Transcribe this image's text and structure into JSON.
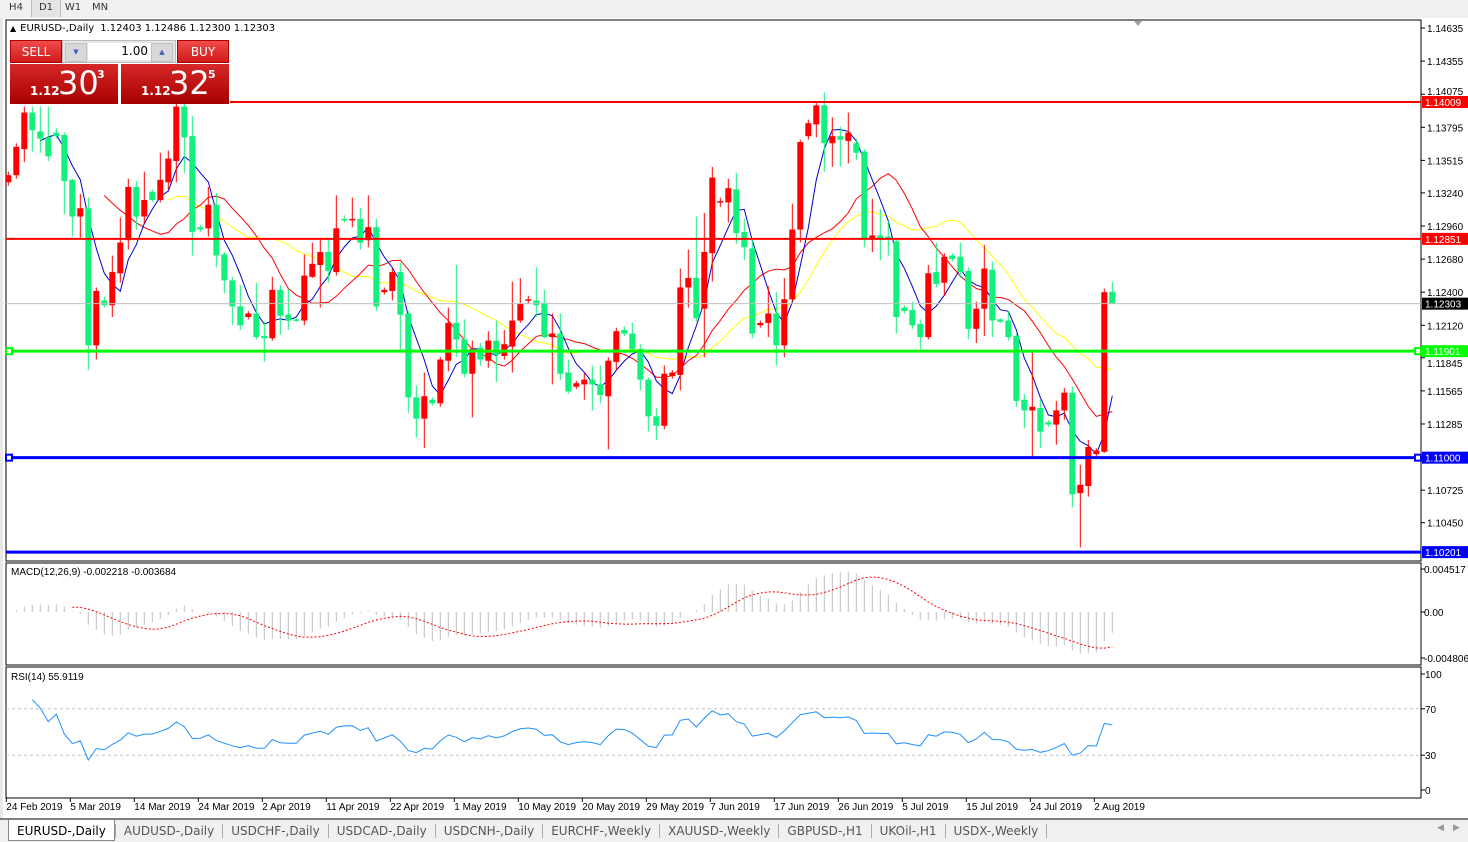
{
  "toolbar": {
    "timeframes": [
      "H4",
      "D1",
      "W1",
      "MN"
    ],
    "active": "D1"
  },
  "chart": {
    "symbol_label": "EURUSD-,Daily",
    "ohlc_text": "1.12403 1.12486 1.12300 1.12303"
  },
  "trade_panel": {
    "sell_label": "SELL",
    "buy_label": "BUY",
    "lot": "1.00",
    "sell_price": {
      "prefix": "1.12",
      "big": "30",
      "sup": "3"
    },
    "buy_price": {
      "prefix": "1.12",
      "big": "32",
      "sup": "5"
    }
  },
  "price_axis": {
    "ticks": [
      "1.14635",
      "1.14355",
      "1.14075",
      "1.13795",
      "1.13515",
      "1.13240",
      "1.12960",
      "1.12680",
      "1.12400",
      "1.12120",
      "1.11845",
      "1.11565",
      "1.11285",
      "1.10725",
      "1.10450"
    ]
  },
  "hlines": [
    {
      "price": "1.14009",
      "color": "#ff0000",
      "text_color": "#ffffff",
      "selected": false
    },
    {
      "price": "1.12851",
      "color": "#ff0000",
      "text_color": "#ffffff",
      "selected": false
    },
    {
      "price": "1.12303",
      "color": "#c0c0c0",
      "text_color": "#ffffff",
      "label_bg": "#000000",
      "selected": false
    },
    {
      "price": "1.11901",
      "color": "#00ff00",
      "text_color": "#ffffff",
      "selected": true
    },
    {
      "price": "1.11000",
      "color": "#0000ff",
      "text_color": "#ffffff",
      "selected": true
    },
    {
      "price": "1.10201",
      "color": "#0000ff",
      "text_color": "#ffffff",
      "selected": false
    }
  ],
  "indicators": {
    "macd": {
      "label": "MACD(12,26,9) -0.002218 -0.003684",
      "ticks": [
        "0.004517",
        "0.00",
        "-0.004806"
      ],
      "histogram_color": "#c0c0c0",
      "signal_color": "#ff0000"
    },
    "rsi": {
      "label": "RSI(14) 55.9119",
      "ticks": [
        "100",
        "70",
        "30",
        "0"
      ],
      "line_color": "#1e90ff"
    }
  },
  "date_axis": [
    "24 Feb 2019",
    "5 Mar 2019",
    "14 Mar 2019",
    "24 Mar 2019",
    "2 Apr 2019",
    "11 Apr 2019",
    "22 Apr 2019",
    "1 May 2019",
    "10 May 2019",
    "20 May 2019",
    "29 May 2019",
    "7 Jun 2019",
    "17 Jun 2019",
    "26 Jun 2019",
    "5 Jul 2019",
    "15 Jul 2019",
    "24 Jul 2019",
    "2 Aug 2019"
  ],
  "tabs": [
    "EURUSD-,Daily",
    "AUDUSD-,Daily",
    "USDCHF-,Daily",
    "USDCAD-,Daily",
    "USDCNH-,Daily",
    "EURCHF-,Weekly",
    "XAUUSD-,Weekly",
    "GBPUSD-,H1",
    "UKOil-,H1",
    "USDX-,Weekly"
  ],
  "chart_data": {
    "type": "candlestick",
    "symbol": "EURUSD-,Daily",
    "colors": {
      "bull": "#ff0000",
      "bear": "#14f07c",
      "ma_fast": "#0000cd",
      "ma_mid": "#ff0000",
      "ma_slow": "#ffff00"
    },
    "ylim": [
      1.1017,
      1.14635
    ],
    "ohlc": [
      [
        1.1333,
        1.1342,
        1.133,
        1.1339
      ],
      [
        1.1339,
        1.1366,
        1.1336,
        1.1363
      ],
      [
        1.1361,
        1.1397,
        1.135,
        1.1392
      ],
      [
        1.1392,
        1.1397,
        1.1359,
        1.1377
      ],
      [
        1.1376,
        1.1397,
        1.1358,
        1.137
      ],
      [
        1.1371,
        1.1397,
        1.1351,
        1.1355
      ],
      [
        1.1375,
        1.1379,
        1.137,
        1.1372
      ],
      [
        1.1373,
        1.1375,
        1.1306,
        1.1334
      ],
      [
        1.1335,
        1.1336,
        1.1287,
        1.1304
      ],
      [
        1.1304,
        1.1323,
        1.1286,
        1.1311
      ],
      [
        1.1311,
        1.132,
        1.1174,
        1.1195
      ],
      [
        1.1195,
        1.1244,
        1.1183,
        1.1241
      ],
      [
        1.1233,
        1.1236,
        1.1227,
        1.1229
      ],
      [
        1.1229,
        1.1271,
        1.1219,
        1.1257
      ],
      [
        1.1256,
        1.1303,
        1.1248,
        1.1282
      ],
      [
        1.1284,
        1.1336,
        1.1276,
        1.1329
      ],
      [
        1.1329,
        1.1334,
        1.1293,
        1.1304
      ],
      [
        1.1304,
        1.1342,
        1.1298,
        1.1318
      ],
      [
        1.1325,
        1.1327,
        1.1316,
        1.1318
      ],
      [
        1.1318,
        1.1358,
        1.1316,
        1.1335
      ],
      [
        1.1333,
        1.136,
        1.1327,
        1.1353
      ],
      [
        1.1351,
        1.14,
        1.1333,
        1.1397
      ],
      [
        1.1397,
        1.14,
        1.1341,
        1.1371
      ],
      [
        1.1372,
        1.1389,
        1.1271,
        1.1291
      ],
      [
        1.1295,
        1.1297,
        1.1291,
        1.1293
      ],
      [
        1.1294,
        1.1329,
        1.1287,
        1.1314
      ],
      [
        1.1314,
        1.1324,
        1.1261,
        1.1271
      ],
      [
        1.1272,
        1.1274,
        1.1239,
        1.125
      ],
      [
        1.125,
        1.1253,
        1.1212,
        1.1228
      ],
      [
        1.1228,
        1.1246,
        1.1208,
        1.1212
      ],
      [
        1.1219,
        1.1224,
        1.1217,
        1.1222
      ],
      [
        1.1222,
        1.1248,
        1.12,
        1.1202
      ],
      [
        1.1203,
        1.1215,
        1.1181,
        1.1201
      ],
      [
        1.1201,
        1.1253,
        1.1199,
        1.1242
      ],
      [
        1.1242,
        1.1246,
        1.1204,
        1.122
      ],
      [
        1.1221,
        1.1243,
        1.1208,
        1.1216
      ],
      [
        1.1217,
        1.1218,
        1.1215,
        1.1216
      ],
      [
        1.1216,
        1.1272,
        1.1212,
        1.1254
      ],
      [
        1.1253,
        1.1282,
        1.1252,
        1.1264
      ],
      [
        1.1263,
        1.1286,
        1.1227,
        1.1274
      ],
      [
        1.1274,
        1.1286,
        1.1248,
        1.1258
      ],
      [
        1.1257,
        1.1322,
        1.1254,
        1.1294
      ],
      [
        1.1302,
        1.1305,
        1.1299,
        1.1301
      ],
      [
        1.1301,
        1.132,
        1.1295,
        1.1302
      ],
      [
        1.1302,
        1.1311,
        1.1276,
        1.1282
      ],
      [
        1.1284,
        1.1322,
        1.1278,
        1.1295
      ],
      [
        1.1295,
        1.1302,
        1.1224,
        1.1228
      ],
      [
        1.124,
        1.1244,
        1.1238,
        1.1242
      ],
      [
        1.1241,
        1.126,
        1.1233,
        1.1257
      ],
      [
        1.1257,
        1.1265,
        1.1189,
        1.1221
      ],
      [
        1.1222,
        1.1224,
        1.1138,
        1.1151
      ],
      [
        1.1151,
        1.1161,
        1.1117,
        1.1133
      ],
      [
        1.1133,
        1.1172,
        1.1108,
        1.1152
      ],
      [
        1.1149,
        1.1151,
        1.1144,
        1.1146
      ],
      [
        1.1146,
        1.1185,
        1.1143,
        1.1183
      ],
      [
        1.1182,
        1.1227,
        1.1173,
        1.1214
      ],
      [
        1.1214,
        1.1263,
        1.1185,
        1.12
      ],
      [
        1.12,
        1.1217,
        1.1168,
        1.1171
      ],
      [
        1.1171,
        1.1199,
        1.1134,
        1.1192
      ],
      [
        1.1193,
        1.1197,
        1.1178,
        1.1183
      ],
      [
        1.1182,
        1.1207,
        1.1176,
        1.1199
      ],
      [
        1.1199,
        1.1216,
        1.1164,
        1.1187
      ],
      [
        1.1186,
        1.1208,
        1.1183,
        1.1196
      ],
      [
        1.1194,
        1.1249,
        1.1172,
        1.1216
      ],
      [
        1.1216,
        1.1252,
        1.1214,
        1.123
      ],
      [
        1.1233,
        1.1237,
        1.123,
        1.1234
      ],
      [
        1.1233,
        1.1261,
        1.1219,
        1.1229
      ],
      [
        1.1231,
        1.1242,
        1.1201,
        1.1202
      ],
      [
        1.1202,
        1.1222,
        1.1162,
        1.1205
      ],
      [
        1.1205,
        1.1222,
        1.1166,
        1.1171
      ],
      [
        1.1172,
        1.1183,
        1.1154,
        1.1156
      ],
      [
        1.116,
        1.1165,
        1.1158,
        1.1163
      ],
      [
        1.1162,
        1.1172,
        1.1149,
        1.1166
      ],
      [
        1.1166,
        1.1178,
        1.114,
        1.1162
      ],
      [
        1.1162,
        1.1178,
        1.1146,
        1.1153
      ],
      [
        1.1152,
        1.1185,
        1.1107,
        1.1182
      ],
      [
        1.1181,
        1.121,
        1.1174,
        1.1207
      ],
      [
        1.1208,
        1.1211,
        1.1203,
        1.1205
      ],
      [
        1.1205,
        1.1214,
        1.119,
        1.1192
      ],
      [
        1.1192,
        1.1196,
        1.1157,
        1.1166
      ],
      [
        1.1166,
        1.1168,
        1.1122,
        1.1135
      ],
      [
        1.1135,
        1.1142,
        1.1115,
        1.1127
      ],
      [
        1.1127,
        1.1178,
        1.1124,
        1.1171
      ],
      [
        1.1169,
        1.1174,
        1.1167,
        1.1172
      ],
      [
        1.117,
        1.126,
        1.1157,
        1.1244
      ],
      [
        1.1244,
        1.1276,
        1.1227,
        1.1252
      ],
      [
        1.1252,
        1.1304,
        1.1215,
        1.1218
      ],
      [
        1.1226,
        1.1307,
        1.1185,
        1.1274
      ],
      [
        1.1273,
        1.1346,
        1.1249,
        1.1337
      ],
      [
        1.1316,
        1.132,
        1.1312,
        1.1317
      ],
      [
        1.1316,
        1.1336,
        1.1299,
        1.1328
      ],
      [
        1.1327,
        1.1341,
        1.1281,
        1.129
      ],
      [
        1.1291,
        1.1302,
        1.1267,
        1.1278
      ],
      [
        1.1277,
        1.1286,
        1.1201,
        1.1205
      ],
      [
        1.1212,
        1.1216,
        1.121,
        1.1214
      ],
      [
        1.1214,
        1.1245,
        1.1202,
        1.1222
      ],
      [
        1.1222,
        1.124,
        1.1178,
        1.1195
      ],
      [
        1.1195,
        1.1252,
        1.1185,
        1.1234
      ],
      [
        1.1234,
        1.1315,
        1.1232,
        1.1293
      ],
      [
        1.1293,
        1.1369,
        1.1282,
        1.1367
      ],
      [
        1.1372,
        1.1386,
        1.1369,
        1.1383
      ],
      [
        1.1382,
        1.1401,
        1.1371,
        1.1398
      ],
      [
        1.1398,
        1.1409,
        1.1342,
        1.1366
      ],
      [
        1.1366,
        1.1388,
        1.1346,
        1.1372
      ],
      [
        1.1372,
        1.138,
        1.1346,
        1.1369
      ],
      [
        1.1368,
        1.1392,
        1.1349,
        1.1375
      ],
      [
        1.1366,
        1.137,
        1.1352,
        1.1358
      ],
      [
        1.1359,
        1.1361,
        1.1278,
        1.1285
      ],
      [
        1.1285,
        1.1319,
        1.1274,
        1.1288
      ],
      [
        1.1288,
        1.131,
        1.1267,
        1.1285
      ],
      [
        1.1287,
        1.13,
        1.1271,
        1.1285
      ],
      [
        1.1283,
        1.1285,
        1.1205,
        1.1219
      ],
      [
        1.1227,
        1.1229,
        1.1222,
        1.1224
      ],
      [
        1.1225,
        1.1232,
        1.1209,
        1.1212
      ],
      [
        1.1213,
        1.1217,
        1.1192,
        1.1202
      ],
      [
        1.1202,
        1.1263,
        1.12,
        1.1256
      ],
      [
        1.1257,
        1.1282,
        1.1244,
        1.1247
      ],
      [
        1.1248,
        1.1273,
        1.1237,
        1.127
      ],
      [
        1.1271,
        1.1273,
        1.1266,
        1.1268
      ],
      [
        1.127,
        1.1282,
        1.1252,
        1.1257
      ],
      [
        1.1258,
        1.1261,
        1.12,
        1.1209
      ],
      [
        1.1209,
        1.1232,
        1.1197,
        1.1226
      ],
      [
        1.1226,
        1.128,
        1.1203,
        1.126
      ],
      [
        1.1259,
        1.1266,
        1.1202,
        1.1216
      ],
      [
        1.1217,
        1.1218,
        1.1214,
        1.1215
      ],
      [
        1.1216,
        1.1224,
        1.1199,
        1.1202
      ],
      [
        1.1203,
        1.1205,
        1.1143,
        1.1148
      ],
      [
        1.1149,
        1.1154,
        1.1125,
        1.114
      ],
      [
        1.114,
        1.1189,
        1.11,
        1.1143
      ],
      [
        1.1142,
        1.1149,
        1.1108,
        1.1122
      ],
      [
        1.113,
        1.1132,
        1.1126,
        1.1128
      ],
      [
        1.1128,
        1.1148,
        1.1111,
        1.114
      ],
      [
        1.114,
        1.1159,
        1.1132,
        1.1155
      ],
      [
        1.1155,
        1.116,
        1.1058,
        1.1069
      ],
      [
        1.107,
        1.1094,
        1.1024,
        1.1077
      ],
      [
        1.1076,
        1.1115,
        1.1067,
        1.1109
      ],
      [
        1.1103,
        1.1108,
        1.1101,
        1.1106
      ],
      [
        1.1105,
        1.1243,
        1.1104,
        1.124
      ],
      [
        1.12403,
        1.12486,
        1.123,
        1.12303
      ]
    ]
  }
}
